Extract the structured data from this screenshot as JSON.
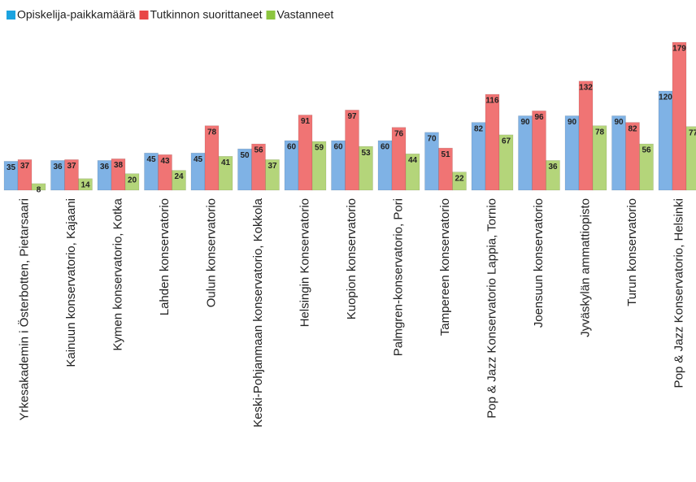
{
  "chart_data": {
    "type": "bar",
    "categories": [
      "Yrkesakademin i Österbotten, Pietarsaari",
      "Kainuun konservatorio, Kajaani",
      "Kymen konservatorio, Kotka",
      "Lahden konservatorio",
      "Oulun konservatorio",
      "Keski-Pohjanmaan konservatorio, Kokkola",
      "Helsingin Konservatorio",
      "Kuopion konservatorio",
      "Palmgren-konservatorio,  Pori",
      "Tampereen konservatorio",
      "Pop & Jazz Konservatorio Lappia, Tornio",
      "Joensuun konservatorio",
      "Jyväskylän ammattiopisto",
      "Turun konservatorio",
      "Pop & Jazz Konservatorio,  Helsinki"
    ],
    "series": [
      {
        "name": "Opiskelija-paikkamäärä",
        "color": "#7fb2e5",
        "legend_color": "#1aa3e0",
        "values": [
          35,
          36,
          36,
          45,
          45,
          50,
          60,
          60,
          60,
          70,
          82,
          90,
          90,
          90,
          120
        ]
      },
      {
        "name": "Tutkinnon suorittaneet",
        "color": "#f07474",
        "legend_color": "#e84545",
        "values": [
          37,
          37,
          38,
          43,
          78,
          56,
          91,
          97,
          76,
          51,
          116,
          96,
          132,
          82,
          179
        ]
      },
      {
        "name": "Vastanneet",
        "color": "#b4d57a",
        "legend_color": "#8cc63f",
        "values": [
          8,
          14,
          20,
          24,
          41,
          37,
          59,
          53,
          44,
          22,
          67,
          36,
          78,
          56,
          77
        ]
      }
    ],
    "legend": "top-left",
    "grid": false
  }
}
